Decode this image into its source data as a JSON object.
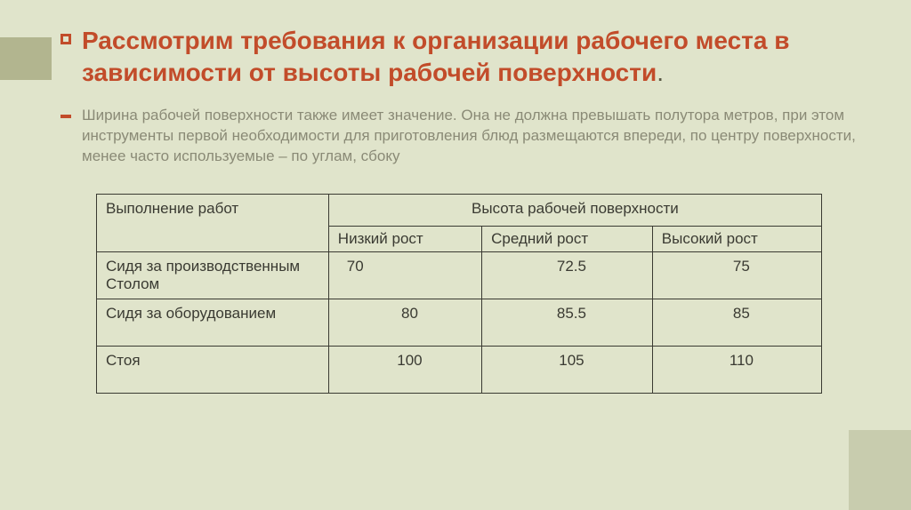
{
  "title": "Рассмотрим требования к организации рабочего места в зависимости от высоты рабочей поверхности",
  "subtitle": "Ширина рабочей поверхности также имеет значение. Она не должна превышать полутора метров, при этом инструменты первой необходимости для приготовления блюд размещаются впереди, по центру поверхности, менее часто используемые – по углам, сбоку",
  "table": {
    "col1_header": "Выполнение работ",
    "merged_header": "Высота рабочей поверхности",
    "sub_headers": [
      "Низкий рост",
      "Средний рост",
      "Высокий рост"
    ],
    "rows": [
      {
        "label": " Сидя за производственным Столом",
        "values": [
          "70",
          "72.5",
          "75"
        ]
      },
      {
        "label": "Сидя за оборудованием",
        "values": [
          "80",
          "85.5",
          "85"
        ]
      },
      {
        "label": "Стоя",
        "values": [
          "100",
          "105",
          "110"
        ]
      }
    ]
  },
  "colors": {
    "accent": "#c24c2a",
    "background": "#e0e4cb",
    "muted_text": "#8a8a76",
    "table_border": "#3a3a32"
  }
}
